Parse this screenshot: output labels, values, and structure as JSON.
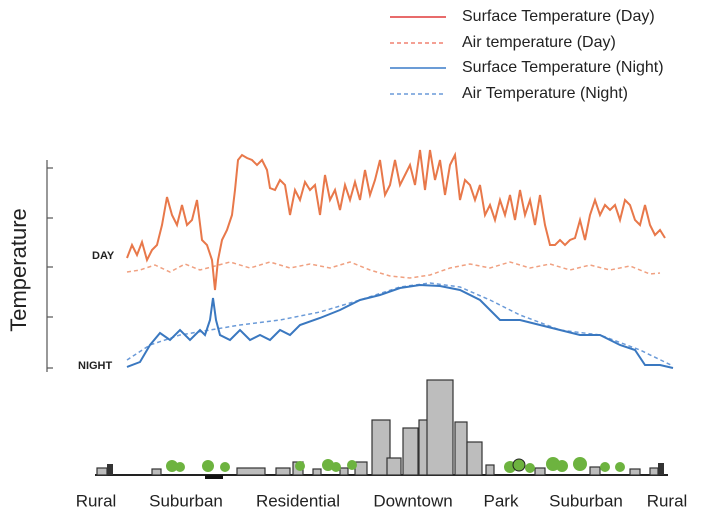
{
  "legend": [
    "Surface Temperature (Day)",
    "Air temperature (Day)",
    "Surface Temperature (Night)",
    "Air Temperature (Night)"
  ],
  "axis_label": "Temperature",
  "markers": {
    "day": "DAY",
    "night": "NIGHT"
  },
  "zones": [
    "Rural",
    "Suburban",
    "Residential",
    "Downtown",
    "Park",
    "Suburban",
    "Rural"
  ]
}
